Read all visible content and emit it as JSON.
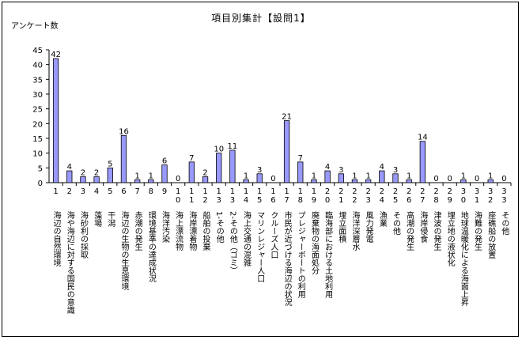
{
  "chart_data": {
    "type": "bar",
    "title": "項目別集計【設問1】",
    "ylabel": "アンケート数",
    "xlabel": "",
    "ylim": [
      0,
      45
    ],
    "ytick_step": 5,
    "grid": false,
    "legend": "none",
    "bar_color": "#9999ff",
    "bar_border": "#000000",
    "categories": [
      {
        "num": "1",
        "label": "海辺の自然環境"
      },
      {
        "num": "2",
        "label": "海や海辺に対する国民の意識"
      },
      {
        "num": "3",
        "label": "海砂利の採取"
      },
      {
        "num": "4",
        "label": "藻場"
      },
      {
        "num": "5",
        "label": "干潟"
      },
      {
        "num": "6",
        "label": "海辺の生物の生息環境"
      },
      {
        "num": "7",
        "label": "赤潮の発生"
      },
      {
        "num": "8",
        "label": "環境基準の達成状況"
      },
      {
        "num": "9",
        "label": "海洋汚染"
      },
      {
        "num": "10",
        "label": "海上漂流物"
      },
      {
        "num": "11",
        "label": "海岸漂着物"
      },
      {
        "num": "12",
        "label": "船舶の投棄"
      },
      {
        "num": "13",
        "label": "1-その他"
      },
      {
        "num": "13",
        "label": "2-その他（ゴミ）"
      },
      {
        "num": "14",
        "label": "海上交通の混雑"
      },
      {
        "num": "15",
        "label": "マリンレジャー人口"
      },
      {
        "num": "16",
        "label": "クルーズ人口"
      },
      {
        "num": "17",
        "label": "市民が近づける海辺の状況"
      },
      {
        "num": "18",
        "label": "プレジャーボートの利用"
      },
      {
        "num": "19",
        "label": "廃棄物の海面処分"
      },
      {
        "num": "20",
        "label": "臨海部における土地利用"
      },
      {
        "num": "21",
        "label": "埋立面積"
      },
      {
        "num": "22",
        "label": "海洋深層水"
      },
      {
        "num": "23",
        "label": "風力発電"
      },
      {
        "num": "24",
        "label": "漁業"
      },
      {
        "num": "25",
        "label": "その他"
      },
      {
        "num": "26",
        "label": "高潮の発生"
      },
      {
        "num": "27",
        "label": "海岸侵食"
      },
      {
        "num": "28",
        "label": "津波の発生"
      },
      {
        "num": "29",
        "label": "埋立地の液状化"
      },
      {
        "num": "30",
        "label": "地球温暖化による海面上昇"
      },
      {
        "num": "31",
        "label": "海難の発生"
      },
      {
        "num": "32",
        "label": "座礁船の放置"
      },
      {
        "num": "33",
        "label": "その他"
      }
    ],
    "values": [
      42,
      4,
      2,
      2,
      5,
      16,
      1,
      1,
      6,
      0,
      7,
      2,
      10,
      11,
      1,
      3,
      0,
      21,
      7,
      1,
      4,
      3,
      1,
      1,
      4,
      3,
      1,
      14,
      0,
      0,
      1,
      0,
      1,
      0
    ]
  }
}
